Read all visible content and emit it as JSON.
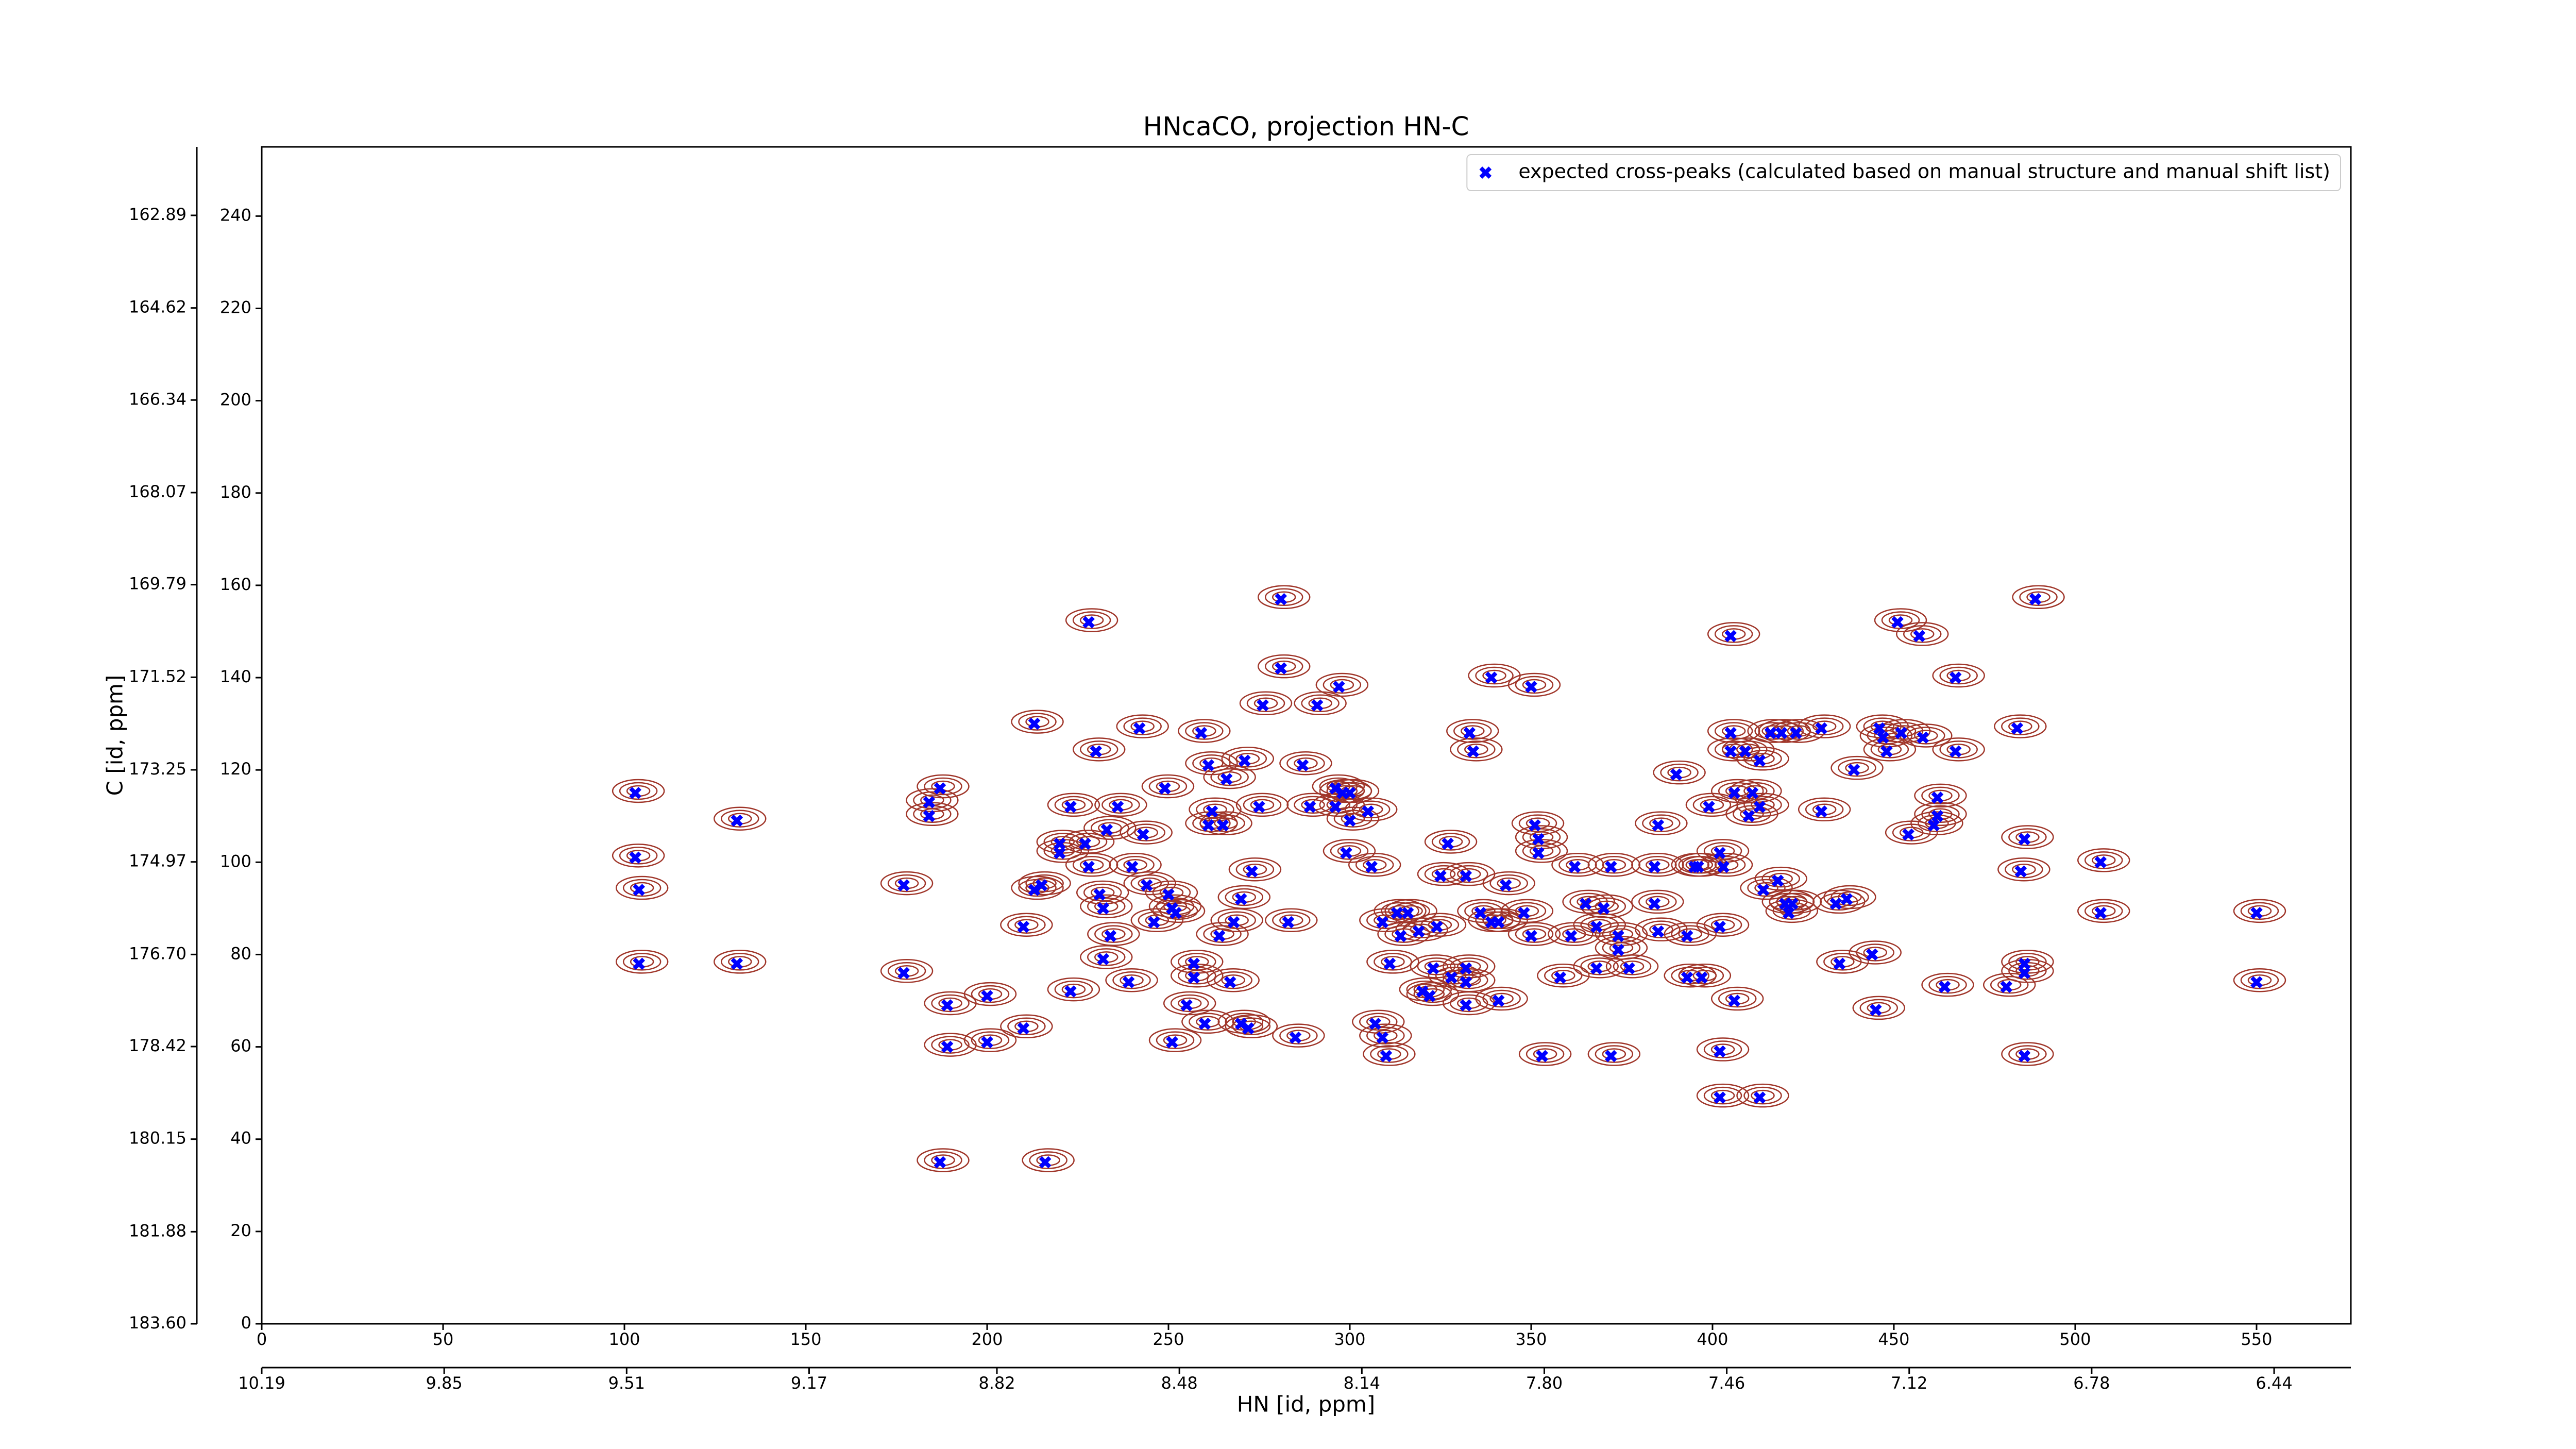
{
  "chart_data": {
    "type": "scatter",
    "title": "HNcaCO, projection HN-C",
    "xlabel": "HN [id, ppm]",
    "ylabel": "C [id, ppm]",
    "xlim": [
      0,
      576
    ],
    "ylim": [
      0,
      255
    ],
    "xticks": [
      0,
      50,
      100,
      150,
      200,
      250,
      300,
      350,
      400,
      450,
      500,
      550
    ],
    "yticks": [
      0,
      20,
      40,
      60,
      80,
      100,
      120,
      140,
      160,
      180,
      200,
      220,
      240
    ],
    "x2lim": [
      10.19,
      6.297
    ],
    "x2ticks": [
      10.19,
      9.85,
      9.51,
      9.17,
      8.82,
      8.48,
      8.14,
      {
        "value": 7.8,
        "label": "7.80"
      },
      7.46,
      7.12,
      6.78,
      6.44
    ],
    "y2lim": [
      183.6,
      161.61
    ],
    "y2ticks": [
      162.89,
      164.62,
      166.34,
      168.07,
      169.79,
      171.52,
      173.25,
      174.97,
      {
        "value": 176.7,
        "label": "176.70"
      },
      178.42,
      180.15,
      181.88,
      {
        "value": 183.6,
        "label": "183.60"
      }
    ],
    "legend": "upper right",
    "contour_color": "#a0362a",
    "series": [
      {
        "name": "expected cross-peaks (calculated based on manual structure and manual shift list)",
        "color": "#0000ff",
        "marker": "X",
        "x": [
          103,
          103,
          104,
          104,
          131,
          131,
          187,
          184,
          184,
          177,
          177,
          189,
          189,
          187,
          200,
          200,
          210,
          210,
          213,
          216,
          228,
          215,
          213,
          220,
          220,
          223,
          223,
          227,
          228,
          230,
          231,
          232,
          232,
          233,
          234,
          236,
          239,
          240,
          242,
          243,
          244,
          246,
          249,
          250,
          251,
          251,
          252,
          255,
          257,
          257,
          259,
          260,
          261,
          261,
          262,
          264,
          265,
          266,
          267,
          268,
          270,
          270,
          271,
          272,
          273,
          275,
          276,
          281,
          281,
          283,
          285,
          287,
          289,
          291,
          296,
          296,
          297,
          298,
          299,
          300,
          300,
          305,
          306,
          307,
          309,
          309,
          310,
          311,
          313,
          314,
          316,
          319,
          320,
          322,
          323,
          324,
          325,
          327,
          328,
          332,
          333,
          332,
          332,
          332,
          334,
          336,
          339,
          339,
          341,
          341,
          343,
          348,
          350,
          350,
          351,
          352,
          352,
          353,
          358,
          361,
          362,
          365,
          368,
          368,
          370,
          372,
          372,
          374,
          374,
          377,
          384,
          384,
          385,
          385,
          390,
          393,
          393,
          395,
          396,
          397,
          399,
          402,
          402,
          402,
          402,
          403,
          405,
          405,
          405,
          406,
          406,
          409,
          410,
          411,
          413,
          413,
          413,
          414,
          416,
          418,
          419,
          420,
          421,
          422,
          423,
          430,
          430,
          434,
          435,
          437,
          439,
          444,
          445,
          446,
          447,
          448,
          451,
          452,
          454,
          457,
          458,
          461,
          462,
          462,
          464,
          467,
          467,
          481,
          484,
          485,
          486,
          486,
          486,
          486,
          489,
          507,
          507,
          550,
          550
        ],
        "values": [
          115,
          101,
          94,
          78,
          109,
          78,
          116,
          113,
          110,
          95,
          76,
          69,
          60,
          35,
          71,
          61,
          64,
          86,
          130,
          35,
          152,
          95,
          94,
          104,
          102,
          112,
          72,
          104,
          99,
          124,
          93,
          90,
          79,
          107,
          84,
          112,
          74,
          99,
          129,
          106,
          95,
          87,
          116,
          93,
          90,
          61,
          89,
          69,
          75,
          78,
          128,
          65,
          121,
          108,
          111,
          84,
          108,
          118,
          74,
          87,
          65,
          92,
          122,
          64,
          98,
          112,
          134,
          157,
          142,
          87,
          62,
          121,
          112,
          134,
          112,
          116,
          138,
          115,
          102,
          109,
          115,
          111,
          99,
          65,
          87,
          62,
          58,
          78,
          89,
          84,
          89,
          85,
          72,
          71,
          77,
          86,
          97,
          104,
          75,
          77,
          128,
          74,
          69,
          97,
          124,
          89,
          140,
          87,
          70,
          87,
          95,
          89,
          84,
          138,
          108,
          105,
          102,
          58,
          75,
          84,
          99,
          91,
          86,
          77,
          90,
          99,
          58,
          84,
          81,
          77,
          99,
          91,
          108,
          85,
          119,
          84,
          75,
          99,
          99,
          75,
          112,
          102,
          86,
          59,
          49,
          99,
          149,
          128,
          124,
          115,
          70,
          124,
          110,
          115,
          49,
          112,
          122,
          94,
          128,
          96,
          128,
          91,
          89,
          91,
          128,
          111,
          129,
          91,
          78,
          92,
          120,
          80,
          68,
          129,
          127,
          124,
          152,
          128,
          106,
          149,
          127,
          108,
          114,
          110,
          73,
          140,
          124,
          73,
          129,
          98,
          105,
          78,
          58,
          76,
          157,
          100,
          89,
          89,
          74
        ]
      }
    ]
  }
}
